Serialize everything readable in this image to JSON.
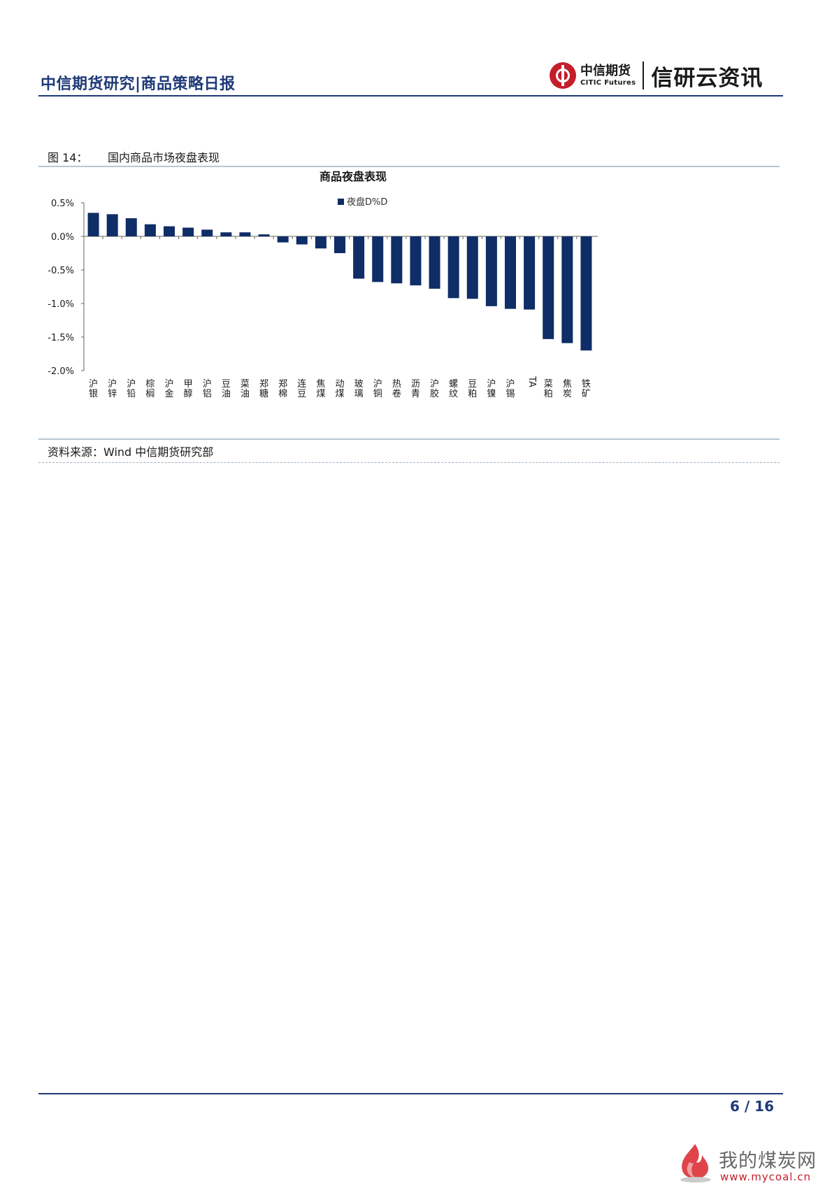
{
  "header": {
    "title": "中信期货研究|商品策略日报",
    "logo_cn": "中信期货",
    "logo_en": "CITIC Futures",
    "brand": "信研云资讯"
  },
  "figure": {
    "number": "图 14：",
    "caption": "国内商品市场夜盘表现",
    "source": "资料来源：Wind  中信期货研究部"
  },
  "chart_data": {
    "type": "bar",
    "title": "商品夜盘表现",
    "series": [
      {
        "name": "夜盘D%D",
        "values": [
          0.35,
          0.33,
          0.27,
          0.18,
          0.15,
          0.13,
          0.1,
          0.06,
          0.06,
          0.03,
          -0.09,
          -0.12,
          -0.18,
          -0.25,
          -0.63,
          -0.68,
          -0.7,
          -0.73,
          -0.78,
          -0.92,
          -0.93,
          -1.04,
          -1.08,
          -1.09,
          -1.53,
          -1.59,
          -1.7
        ]
      }
    ],
    "categories": [
      "沪银",
      "沪锌",
      "沪铅",
      "棕榈",
      "沪金",
      "甲醇",
      "沪铝",
      "豆油",
      "菜油",
      "郑糖",
      "郑棉",
      "连豆",
      "焦煤",
      "动煤",
      "玻璃",
      "沪铜",
      "热卷",
      "沥青",
      "沪胶",
      "螺纹",
      "豆粕",
      "沪镍",
      "沪锡",
      "TA",
      "菜粕",
      "焦炭",
      "铁矿"
    ],
    "yticks": [
      "0.5%",
      "0.0%",
      "-0.5%",
      "-1.0%",
      "-1.5%",
      "-2.0%"
    ],
    "ylim": [
      -2.0,
      0.5
    ],
    "legend_position": "top-center",
    "bar_color": "#0f2d66"
  },
  "footer": {
    "page": "6 / 16"
  },
  "watermark": {
    "name": "我的煤炭网",
    "url": "www.mycoal.cn"
  }
}
